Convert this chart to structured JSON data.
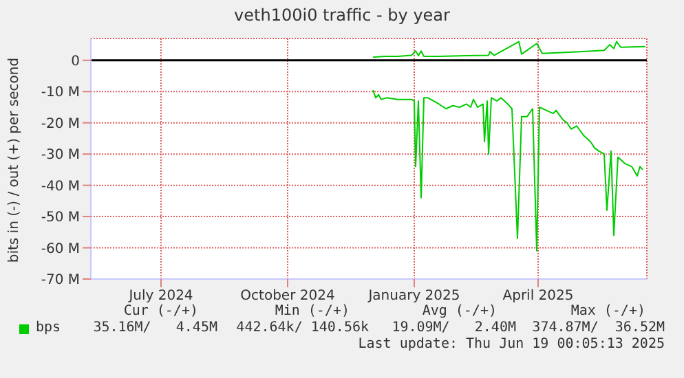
{
  "chart_data": {
    "type": "line",
    "title": "veth100i0 traffic - by year",
    "ylabel": "bits in (-) / out (+) per second",
    "xlim": [
      "2024-05-11",
      "2025-06-19"
    ],
    "xticks": [
      {
        "value": "2024-07-01",
        "label": "July 2024"
      },
      {
        "value": "2024-10-01",
        "label": "October 2024"
      },
      {
        "value": "2025-01-01",
        "label": "January 2025"
      },
      {
        "value": "2025-04-01",
        "label": "April 2025"
      }
    ],
    "ylim": [
      -70000000,
      7000000
    ],
    "yticks": [
      {
        "value": 0,
        "label": "0"
      },
      {
        "value": -10000000,
        "label": "-10 M"
      },
      {
        "value": -20000000,
        "label": "-20 M"
      },
      {
        "value": -30000000,
        "label": "-30 M"
      },
      {
        "value": -40000000,
        "label": "-40 M"
      },
      {
        "value": -50000000,
        "label": "-50 M"
      },
      {
        "value": -60000000,
        "label": "-60 M"
      },
      {
        "value": -70000000,
        "label": "-70 M"
      }
    ],
    "grid": true,
    "legend": "bottom",
    "marker": "none",
    "line_style": "solid",
    "ref_lines": [
      {
        "axis": "y",
        "value": 0,
        "color": "#000000"
      }
    ],
    "series": [
      {
        "name": "bps",
        "color": "#00cc00",
        "x": [
          "2024-12-02",
          "2024-12-04",
          "2024-12-06",
          "2024-12-08",
          "2024-12-12",
          "2024-12-20",
          "2024-12-30",
          "2025-01-01",
          "2025-01-02",
          "2025-01-04",
          "2025-01-06",
          "2025-01-08",
          "2025-01-11",
          "2025-01-19",
          "2025-01-24",
          "2025-01-29",
          "2025-02-03",
          "2025-02-08",
          "2025-02-11",
          "2025-02-13",
          "2025-02-16",
          "2025-02-20",
          "2025-02-21",
          "2025-02-23",
          "2025-02-24",
          "2025-02-26",
          "2025-03-02",
          "2025-03-05",
          "2025-03-10",
          "2025-03-13",
          "2025-03-17",
          "2025-03-20",
          "2025-03-24",
          "2025-03-28",
          "2025-03-31",
          "2025-04-02",
          "2025-04-07",
          "2025-04-12",
          "2025-04-14",
          "2025-04-19",
          "2025-04-22",
          "2025-04-25",
          "2025-04-29",
          "2025-05-04",
          "2025-05-09",
          "2025-05-12",
          "2025-05-15",
          "2025-05-19",
          "2025-05-21",
          "2025-05-24",
          "2025-05-26",
          "2025-05-29",
          "2025-06-03",
          "2025-06-08",
          "2025-06-12",
          "2025-06-14",
          "2025-06-16"
        ],
        "values": [
          -9500000,
          -12000000,
          -11000000,
          -12500000,
          -12000000,
          -12500000,
          -12500000,
          -13000000,
          -34000000,
          -13000000,
          -44000000,
          -12000000,
          -12000000,
          -14000000,
          -15500000,
          -14500000,
          -15000000,
          -14000000,
          -15000000,
          -12500000,
          -15000000,
          -14000000,
          -26000000,
          -13000000,
          -30000000,
          -12000000,
          -13000000,
          -12000000,
          -14000000,
          -15500000,
          -57000000,
          -18000000,
          -18000000,
          -15500000,
          -61000000,
          -15000000,
          -16000000,
          -17000000,
          -16000000,
          -19000000,
          -20000000,
          -22000000,
          -21000000,
          -24000000,
          -26000000,
          -28000000,
          -29000000,
          -30000000,
          -48000000,
          -29000000,
          -56000000,
          -31000000,
          -33000000,
          -34000000,
          -37000000,
          -34000000,
          -35000000
        ]
      },
      {
        "color": "#00cc00",
        "x": [
          "2024-12-02",
          "2024-12-10",
          "2024-12-20",
          "2024-12-30",
          "2025-01-02",
          "2025-01-04",
          "2025-01-06",
          "2025-01-08",
          "2025-01-19",
          "2025-02-08",
          "2025-02-24",
          "2025-02-25",
          "2025-02-28",
          "2025-03-18",
          "2025-03-20",
          "2025-03-31",
          "2025-04-04",
          "2025-04-29",
          "2025-05-19",
          "2025-05-23",
          "2025-05-26",
          "2025-05-28",
          "2025-05-31",
          "2025-06-18"
        ],
        "values": [
          1000000,
          1300000,
          1300000,
          1600000,
          3000000,
          1500000,
          3000000,
          1300000,
          1300000,
          1500000,
          1600000,
          2800000,
          1600000,
          6000000,
          2000000,
          5400000,
          2200000,
          2700000,
          3200000,
          5000000,
          3800000,
          6000000,
          4200000,
          4400000
        ]
      }
    ],
    "annotations": [
      "Cur (-/+)",
      "Min (-/+)",
      "Avg (-/+)",
      "Max (-/+)",
      "35.16M/   4.45M",
      "442.64k/ 140.56k",
      "19.09M/   2.40M",
      "374.87M/  36.52M",
      "Last update: Thu Jun 19 00:05:13 2025"
    ]
  }
}
